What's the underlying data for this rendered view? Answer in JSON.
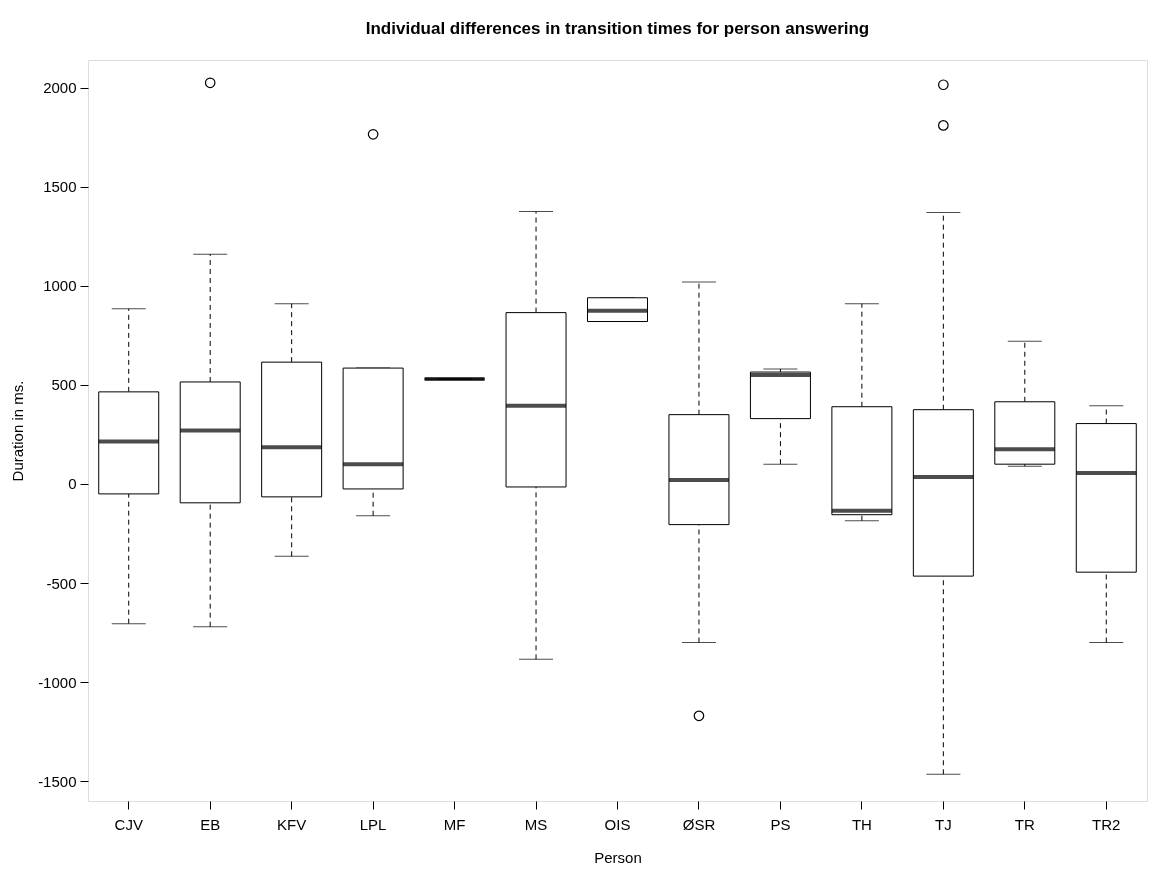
{
  "chart_data": {
    "type": "box",
    "title": "Individual differences in transition times for person answering",
    "xlabel": "Person",
    "ylabel": "Duration in ms.",
    "categories": [
      "CJV",
      "EB",
      "KFV",
      "LPL",
      "MF",
      "MS",
      "OIS",
      "ØSR",
      "PS",
      "TH",
      "TJ",
      "TR",
      "TR2"
    ],
    "boxes": [
      {
        "low": -705,
        "q1": -50,
        "median": 215,
        "q3": 465,
        "high": 885
      },
      {
        "low": -720,
        "q1": -95,
        "median": 270,
        "q3": 515,
        "high": 1160,
        "outliers": [
          2025
        ]
      },
      {
        "low": -365,
        "q1": -65,
        "median": 185,
        "q3": 615,
        "high": 910
      },
      {
        "low": -160,
        "q1": -25,
        "median": 100,
        "q3": 585,
        "high": 585,
        "outliers": [
          1765
        ]
      },
      {
        "low": 530,
        "q1": 530,
        "median": 530,
        "q3": 530,
        "high": 530
      },
      {
        "low": -885,
        "q1": -15,
        "median": 395,
        "q3": 865,
        "high": 1375
      },
      {
        "low": 820,
        "q1": 820,
        "median": 875,
        "q3": 940,
        "high": 940
      },
      {
        "low": -800,
        "q1": -205,
        "median": 20,
        "q3": 350,
        "high": 1020,
        "outliers": [
          -1170
        ]
      },
      {
        "low": 100,
        "q1": 330,
        "median": 550,
        "q3": 565,
        "high": 580
      },
      {
        "low": -185,
        "q1": -155,
        "median": -135,
        "q3": 390,
        "high": 910
      },
      {
        "low": -1465,
        "q1": -465,
        "median": 35,
        "q3": 375,
        "high": 1370,
        "outliers": [
          1810,
          2015
        ]
      },
      {
        "low": 90,
        "q1": 100,
        "median": 175,
        "q3": 415,
        "high": 720
      },
      {
        "low": -800,
        "q1": -445,
        "median": 55,
        "q3": 305,
        "high": 395
      }
    ],
    "ylim": [
      -1600,
      2140
    ],
    "yticks": [
      -1500,
      -1000,
      -500,
      0,
      500,
      1000,
      1500,
      2000
    ],
    "grid": false,
    "line_style": "dashed",
    "marker": "circle"
  }
}
